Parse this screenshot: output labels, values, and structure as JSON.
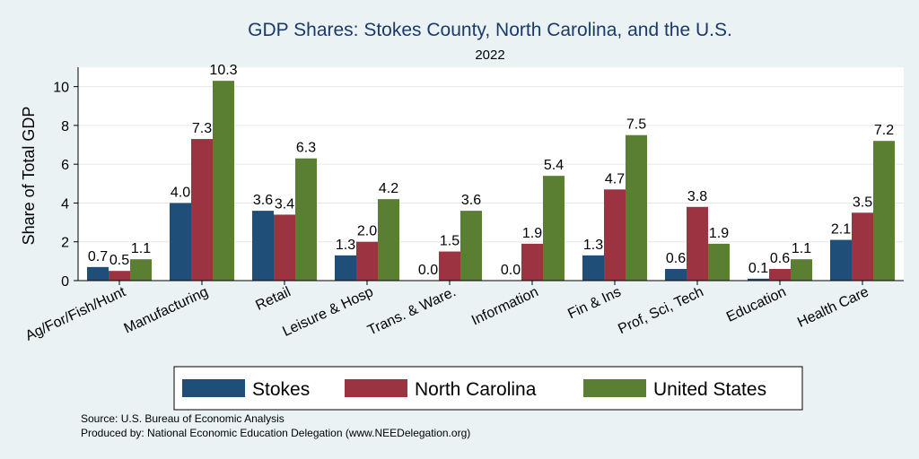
{
  "chart_data": {
    "type": "bar",
    "title": "GDP Shares: Stokes County, North Carolina, and the U.S.",
    "subtitle": "2022",
    "ylabel": "Share of Total GDP",
    "xlabel": "",
    "ylim": [
      0,
      11
    ],
    "yticks": [
      0,
      2,
      4,
      6,
      8,
      10
    ],
    "grid": true,
    "legend_position": "bottom",
    "categories": [
      "Ag/For/Fish/Hunt",
      "Manufacturing",
      "Retail",
      "Leisure & Hosp",
      "Trans. & Ware.",
      "Information",
      "Fin & Ins",
      "Prof, Sci, Tech",
      "Education",
      "Health Care"
    ],
    "series": [
      {
        "name": "Stokes",
        "color": "#1f4e79",
        "values": [
          0.7,
          4.0,
          3.6,
          1.3,
          0.0,
          0.0,
          1.3,
          0.6,
          0.1,
          2.1
        ],
        "labels": [
          "0.7",
          "4.0",
          "3.6",
          "1.3",
          "0.0",
          "0.0",
          "1.3",
          "0.6",
          "0.1",
          "2.1"
        ]
      },
      {
        "name": "North Carolina",
        "color": "#9b3340",
        "values": [
          0.5,
          7.3,
          3.4,
          2.0,
          1.5,
          1.9,
          4.7,
          3.8,
          0.6,
          3.5
        ],
        "labels": [
          "0.5",
          "7.3",
          "3.4",
          "2.0",
          "1.5",
          "1.9",
          "4.7",
          "3.8",
          "0.6",
          "3.5"
        ]
      },
      {
        "name": "United States",
        "color": "#5a7f32",
        "values": [
          1.1,
          10.3,
          6.3,
          4.2,
          3.6,
          5.4,
          7.5,
          1.9,
          1.1,
          7.2
        ],
        "labels": [
          "1.1",
          "10.3",
          "6.3",
          "4.2",
          "3.6",
          "5.4",
          "7.5",
          "1.9",
          "1.1",
          "7.2"
        ]
      }
    ],
    "notes": [
      "Source: U.S. Bureau of Economic Analysis",
      "Produced by: National Economic Education Delegation (www.NEEDelegation.org)"
    ]
  }
}
